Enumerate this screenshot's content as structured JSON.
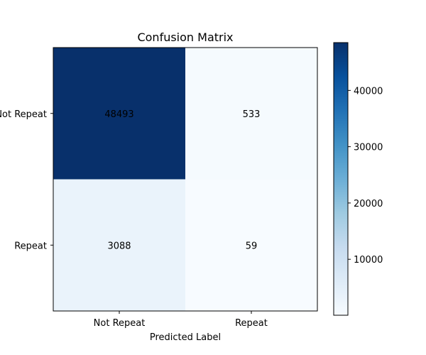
{
  "chart_data": {
    "type": "heatmap",
    "title": "Confusion Matrix",
    "xlabel": "Predicted Label",
    "ylabel": "",
    "x_categories": [
      "Not Repeat",
      "Repeat"
    ],
    "y_categories": [
      "Not Repeat",
      "Repeat"
    ],
    "values": [
      [
        48493,
        533
      ],
      [
        3088,
        59
      ]
    ],
    "colormap": "Blues",
    "colorbar": {
      "range": [
        59,
        48493
      ],
      "ticks": [
        10000,
        20000,
        30000,
        40000
      ],
      "tick_labels": [
        "10000",
        "20000",
        "30000",
        "40000"
      ]
    },
    "grid": false
  }
}
